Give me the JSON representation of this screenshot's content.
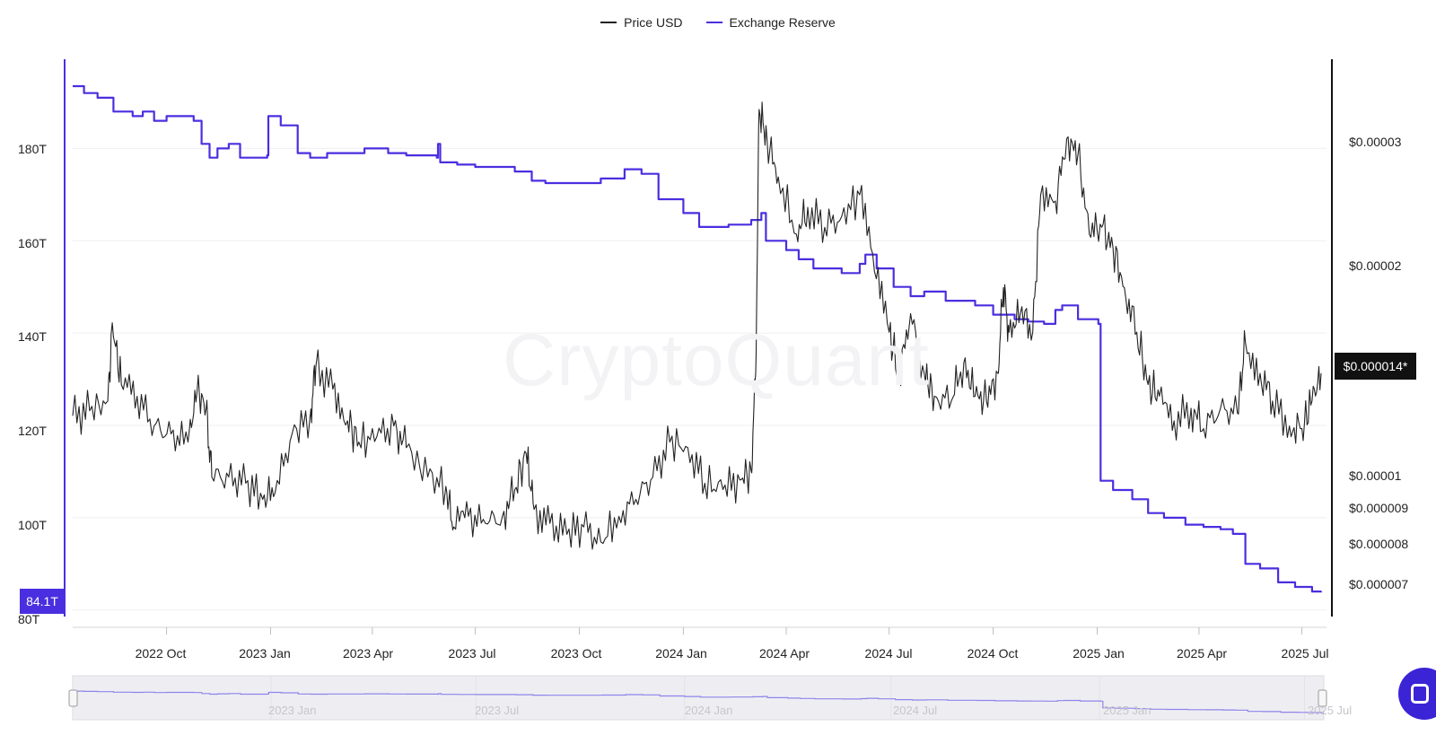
{
  "legend": [
    {
      "label": "Price USD",
      "color": "#222222"
    },
    {
      "label": "Exchange Reserve",
      "color": "#4a2fe0"
    }
  ],
  "watermark": "CryptoQuant",
  "left_axis": {
    "ticks": [
      {
        "label": "180T",
        "value": 180
      },
      {
        "label": "160T",
        "value": 160
      },
      {
        "label": "140T",
        "value": 140
      },
      {
        "label": "120T",
        "value": 120
      },
      {
        "label": "100T",
        "value": 100
      },
      {
        "label": "80T",
        "value": 80
      }
    ],
    "current_label": "84.1T"
  },
  "right_axis": {
    "ticks": [
      {
        "label": "$0.00003",
        "value": 3e-05
      },
      {
        "label": "$0.00002",
        "value": 2e-05
      },
      {
        "label": "$0.00001",
        "value": 1e-05
      },
      {
        "label": "$0.000009",
        "value": 9e-06
      },
      {
        "label": "$0.000008",
        "value": 8e-06
      },
      {
        "label": "$0.000007",
        "value": 7e-06
      }
    ],
    "current_label": "$0.000014*"
  },
  "x_axis": {
    "ticks": [
      {
        "label": "2022 Oct",
        "date": "2022-10-01"
      },
      {
        "label": "2023 Jan",
        "date": "2023-01-01"
      },
      {
        "label": "2023 Apr",
        "date": "2023-04-01"
      },
      {
        "label": "2023 Jul",
        "date": "2023-07-01"
      },
      {
        "label": "2023 Oct",
        "date": "2023-10-01"
      },
      {
        "label": "2024 Jan",
        "date": "2024-01-01"
      },
      {
        "label": "2024 Apr",
        "date": "2024-04-01"
      },
      {
        "label": "2024 Jul",
        "date": "2024-07-01"
      },
      {
        "label": "2024 Oct",
        "date": "2024-10-01"
      },
      {
        "label": "2025 Jan",
        "date": "2025-01-01"
      },
      {
        "label": "2025 Apr",
        "date": "2025-04-01"
      },
      {
        "label": "2025 Jul",
        "date": "2025-07-01"
      }
    ]
  },
  "navigator": {
    "ticks": [
      {
        "label": "2023 Jan",
        "date": "2023-01-01"
      },
      {
        "label": "2023 Jul",
        "date": "2023-07-01"
      },
      {
        "label": "2024 Jan",
        "date": "2024-01-01"
      },
      {
        "label": "2024 Jul",
        "date": "2024-07-01"
      },
      {
        "label": "2025 Jan",
        "date": "2025-01-01"
      },
      {
        "label": "2025 Jul",
        "date": "2025-07-01"
      }
    ]
  },
  "chart_data": {
    "type": "line",
    "title": "",
    "xlabel": "",
    "ylabel": "",
    "x_range": [
      "2022-07-10",
      "2025-07-18"
    ],
    "left_ylim": [
      78,
      197
    ],
    "right_scale": "log",
    "grid": true,
    "legend_position": "top-center",
    "series": [
      {
        "name": "Exchange Reserve",
        "axis": "left",
        "color": "#4a2fe0",
        "points": [
          [
            "2022-07-10",
            193.5
          ],
          [
            "2022-07-20",
            192
          ],
          [
            "2022-08-01",
            191
          ],
          [
            "2022-08-15",
            188
          ],
          [
            "2022-09-01",
            187
          ],
          [
            "2022-09-10",
            188
          ],
          [
            "2022-09-20",
            186
          ],
          [
            "2022-10-01",
            187
          ],
          [
            "2022-10-15",
            187
          ],
          [
            "2022-10-25",
            186
          ],
          [
            "2022-11-01",
            181
          ],
          [
            "2022-11-08",
            178
          ],
          [
            "2022-11-15",
            180
          ],
          [
            "2022-11-25",
            181
          ],
          [
            "2022-12-05",
            178
          ],
          [
            "2022-12-20",
            178
          ],
          [
            "2022-12-29",
            178.5
          ],
          [
            "2022-12-30",
            187
          ],
          [
            "2023-01-08",
            187
          ],
          [
            "2023-01-10",
            185
          ],
          [
            "2023-01-20",
            185
          ],
          [
            "2023-01-25",
            179
          ],
          [
            "2023-02-05",
            178
          ],
          [
            "2023-02-20",
            179
          ],
          [
            "2023-03-10",
            179
          ],
          [
            "2023-03-25",
            180
          ],
          [
            "2023-04-15",
            179
          ],
          [
            "2023-05-01",
            178.5
          ],
          [
            "2023-05-20",
            178.5
          ],
          [
            "2023-05-28",
            178
          ],
          [
            "2023-05-29",
            181
          ],
          [
            "2023-05-31",
            177
          ],
          [
            "2023-06-15",
            176.5
          ],
          [
            "2023-07-01",
            176
          ],
          [
            "2023-07-20",
            176
          ],
          [
            "2023-08-05",
            175
          ],
          [
            "2023-08-20",
            173
          ],
          [
            "2023-09-01",
            172.5
          ],
          [
            "2023-10-01",
            172.5
          ],
          [
            "2023-10-20",
            173.5
          ],
          [
            "2023-11-10",
            175.5
          ],
          [
            "2023-11-25",
            174.5
          ],
          [
            "2023-12-10",
            169
          ],
          [
            "2024-01-01",
            166
          ],
          [
            "2024-01-15",
            163
          ],
          [
            "2024-02-10",
            163.5
          ],
          [
            "2024-03-01",
            164.5
          ],
          [
            "2024-03-10",
            166
          ],
          [
            "2024-03-14",
            160
          ],
          [
            "2024-04-01",
            158
          ],
          [
            "2024-04-12",
            156
          ],
          [
            "2024-04-25",
            154
          ],
          [
            "2024-05-20",
            153
          ],
          [
            "2024-06-05",
            155
          ],
          [
            "2024-06-10",
            157
          ],
          [
            "2024-06-20",
            154
          ],
          [
            "2024-07-05",
            150
          ],
          [
            "2024-07-20",
            148
          ],
          [
            "2024-08-01",
            149
          ],
          [
            "2024-08-20",
            147
          ],
          [
            "2024-09-15",
            146
          ],
          [
            "2024-10-01",
            144
          ],
          [
            "2024-10-20",
            143
          ],
          [
            "2024-11-01",
            142.5
          ],
          [
            "2024-11-15",
            142
          ],
          [
            "2024-11-25",
            145
          ],
          [
            "2024-12-01",
            146
          ],
          [
            "2024-12-15",
            143
          ],
          [
            "2024-12-25",
            143
          ],
          [
            "2025-01-02",
            142
          ],
          [
            "2025-01-04",
            108
          ],
          [
            "2025-01-15",
            106
          ],
          [
            "2025-02-01",
            104
          ],
          [
            "2025-02-15",
            101
          ],
          [
            "2025-03-01",
            100
          ],
          [
            "2025-03-20",
            98.5
          ],
          [
            "2025-04-05",
            98
          ],
          [
            "2025-04-20",
            97.5
          ],
          [
            "2025-05-01",
            96.5
          ],
          [
            "2025-05-10",
            96.5
          ],
          [
            "2025-05-12",
            90
          ],
          [
            "2025-05-25",
            89
          ],
          [
            "2025-06-10",
            86
          ],
          [
            "2025-06-25",
            85
          ],
          [
            "2025-07-10",
            84
          ],
          [
            "2025-07-18",
            84.1
          ]
        ]
      },
      {
        "name": "Price USD",
        "axis": "right",
        "color": "#222222",
        "points": [
          [
            "2022-07-10",
            1.22e-05
          ],
          [
            "2022-07-25",
            1.24e-05
          ],
          [
            "2022-08-10",
            1.28e-05
          ],
          [
            "2022-08-14",
            1.65e-05
          ],
          [
            "2022-08-22",
            1.35e-05
          ],
          [
            "2022-09-05",
            1.3e-05
          ],
          [
            "2022-09-20",
            1.18e-05
          ],
          [
            "2022-10-05",
            1.15e-05
          ],
          [
            "2022-10-20",
            1.12e-05
          ],
          [
            "2022-10-28",
            1.32e-05
          ],
          [
            "2022-11-05",
            1.25e-05
          ],
          [
            "2022-11-10",
            1e-05
          ],
          [
            "2022-11-25",
            1e-05
          ],
          [
            "2022-12-10",
            9.8e-06
          ],
          [
            "2022-12-25",
            9.3e-06
          ],
          [
            "2023-01-05",
            9.5e-06
          ],
          [
            "2023-01-20",
            1.15e-05
          ],
          [
            "2023-02-05",
            1.22e-05
          ],
          [
            "2023-02-10",
            1.43e-05
          ],
          [
            "2023-02-25",
            1.33e-05
          ],
          [
            "2023-03-10",
            1.2e-05
          ],
          [
            "2023-03-20",
            1.12e-05
          ],
          [
            "2023-04-05",
            1.14e-05
          ],
          [
            "2023-04-20",
            1.18e-05
          ],
          [
            "2023-05-01",
            1.1e-05
          ],
          [
            "2023-05-20",
            1e-05
          ],
          [
            "2023-06-05",
            9.7e-06
          ],
          [
            "2023-06-12",
            8.5e-06
          ],
          [
            "2023-06-25",
            8.8e-06
          ],
          [
            "2023-07-10",
            8.6e-06
          ],
          [
            "2023-07-25",
            8.8e-06
          ],
          [
            "2023-08-05",
            9.6e-06
          ],
          [
            "2023-08-15",
            1.08e-05
          ],
          [
            "2023-08-22",
            9e-06
          ],
          [
            "2023-09-05",
            8.6e-06
          ],
          [
            "2023-09-20",
            8.3e-06
          ],
          [
            "2023-10-05",
            8.5e-06
          ],
          [
            "2023-10-20",
            8.1e-06
          ],
          [
            "2023-11-05",
            8.8e-06
          ],
          [
            "2023-11-20",
            9.3e-06
          ],
          [
            "2023-12-05",
            1e-05
          ],
          [
            "2023-12-20",
            1.12e-05
          ],
          [
            "2024-01-05",
            1.1e-05
          ],
          [
            "2024-01-20",
            9.8e-06
          ],
          [
            "2024-02-05",
            9.6e-06
          ],
          [
            "2024-02-20",
            9.9e-06
          ],
          [
            "2024-03-01",
            1.02e-05
          ],
          [
            "2024-03-05",
            1.4e-05
          ],
          [
            "2024-03-08",
            3.3e-05
          ],
          [
            "2024-03-15",
            3e-05
          ],
          [
            "2024-03-25",
            2.65e-05
          ],
          [
            "2024-04-10",
            2.2e-05
          ],
          [
            "2024-04-20",
            2.4e-05
          ],
          [
            "2024-05-05",
            2.25e-05
          ],
          [
            "2024-05-20",
            2.33e-05
          ],
          [
            "2024-06-05",
            2.5e-05
          ],
          [
            "2024-06-18",
            1.95e-05
          ],
          [
            "2024-07-01",
            1.6e-05
          ],
          [
            "2024-07-10",
            1.4e-05
          ],
          [
            "2024-07-20",
            1.7e-05
          ],
          [
            "2024-08-01",
            1.4e-05
          ],
          [
            "2024-08-10",
            1.3e-05
          ],
          [
            "2024-08-25",
            1.28e-05
          ],
          [
            "2024-09-05",
            1.45e-05
          ],
          [
            "2024-09-15",
            1.3e-05
          ],
          [
            "2024-09-25",
            1.28e-05
          ],
          [
            "2024-10-05",
            1.4e-05
          ],
          [
            "2024-10-10",
            1.85e-05
          ],
          [
            "2024-10-15",
            1.6e-05
          ],
          [
            "2024-10-25",
            1.7e-05
          ],
          [
            "2024-11-05",
            1.6e-05
          ],
          [
            "2024-11-12",
            2.5e-05
          ],
          [
            "2024-11-25",
            2.45e-05
          ],
          [
            "2024-12-05",
            3e-05
          ],
          [
            "2024-12-15",
            2.85e-05
          ],
          [
            "2024-12-25",
            2.2e-05
          ],
          [
            "2025-01-05",
            2.25e-05
          ],
          [
            "2025-01-15",
            2.1e-05
          ],
          [
            "2025-01-25",
            1.85e-05
          ],
          [
            "2025-02-05",
            1.6e-05
          ],
          [
            "2025-02-15",
            1.35e-05
          ],
          [
            "2025-02-25",
            1.3e-05
          ],
          [
            "2025-03-10",
            1.2e-05
          ],
          [
            "2025-03-25",
            1.25e-05
          ],
          [
            "2025-04-05",
            1.17e-05
          ],
          [
            "2025-04-20",
            1.25e-05
          ],
          [
            "2025-05-05",
            1.23e-05
          ],
          [
            "2025-05-12",
            1.55e-05
          ],
          [
            "2025-05-25",
            1.4e-05
          ],
          [
            "2025-06-05",
            1.28e-05
          ],
          [
            "2025-06-20",
            1.18e-05
          ],
          [
            "2025-07-01",
            1.17e-05
          ],
          [
            "2025-07-10",
            1.28e-05
          ],
          [
            "2025-07-18",
            1.4e-05
          ]
        ]
      }
    ]
  }
}
